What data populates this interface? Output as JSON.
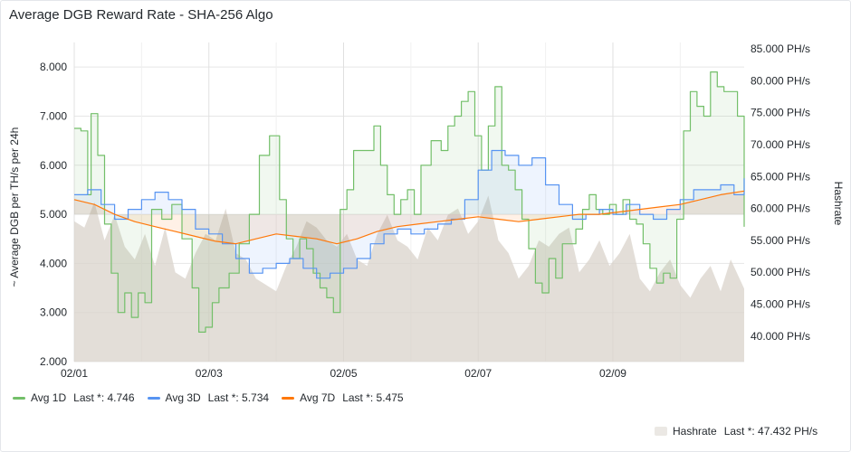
{
  "panel": {
    "title": "Average DGB Reward Rate - SHA-256 Algo"
  },
  "legend": {
    "items": [
      {
        "name": "Avg 1D",
        "stat": "Last *: 4.746",
        "color": "#73bf69"
      },
      {
        "name": "Avg 3D",
        "stat": "Last *: 5.734",
        "color": "#5794f2"
      },
      {
        "name": "Avg 7D",
        "stat": "Last *: 5.475",
        "color": "#ff780a"
      }
    ],
    "hashrate": {
      "name": "Hashrate",
      "stat": "Last *: 47.432 PH/s",
      "color": "#e9e6e1"
    }
  },
  "chart_data": {
    "type": "line",
    "title": "Average DGB Reward Rate - SHA-256 Algo",
    "x_ticks": [
      "02/01",
      "02/03",
      "02/05",
      "02/07",
      "02/09"
    ],
    "x_range_days": [
      0,
      9.95
    ],
    "y_left": {
      "label": "~ Average DGB per TH/s per 24h",
      "range": [
        2.0,
        8.5
      ],
      "ticks": [
        "2.000",
        "3.000",
        "4.000",
        "5.000",
        "6.000",
        "7.000",
        "8.000"
      ]
    },
    "y_right": {
      "label": "Hashrate",
      "range": [
        36000,
        86000
      ],
      "ticks": [
        "40.000 PH/s",
        "45.000 PH/s",
        "50.000 PH/s",
        "55.000 PH/s",
        "60.000 PH/s",
        "65.000 PH/s",
        "70.000 PH/s",
        "75.000 PH/s",
        "80.000 PH/s",
        "85.000 PH/s"
      ]
    },
    "grid": true,
    "series": [
      {
        "name": "Avg 1D",
        "axis": "left",
        "color": "#73bf69",
        "x": [
          0,
          0.1,
          0.2,
          0.25,
          0.35,
          0.45,
          0.55,
          0.65,
          0.75,
          0.85,
          0.95,
          1.05,
          1.15,
          1.3,
          1.45,
          1.6,
          1.75,
          1.85,
          1.95,
          2.05,
          2.15,
          2.3,
          2.45,
          2.6,
          2.75,
          2.9,
          3.05,
          3.15,
          3.25,
          3.35,
          3.45,
          3.55,
          3.65,
          3.75,
          3.85,
          3.95,
          4.05,
          4.15,
          4.3,
          4.45,
          4.55,
          4.65,
          4.75,
          4.85,
          4.95,
          5.05,
          5.15,
          5.3,
          5.45,
          5.55,
          5.65,
          5.75,
          5.85,
          5.95,
          6.05,
          6.15,
          6.25,
          6.35,
          6.45,
          6.55,
          6.65,
          6.75,
          6.85,
          6.95,
          7.05,
          7.15,
          7.25,
          7.35,
          7.45,
          7.55,
          7.65,
          7.75,
          7.85,
          7.95,
          8.05,
          8.15,
          8.25,
          8.35,
          8.45,
          8.55,
          8.65,
          8.75,
          8.85,
          8.95,
          9.05,
          9.15,
          9.25,
          9.35,
          9.45,
          9.55,
          9.65,
          9.75,
          9.85,
          9.95
        ],
        "values": [
          6.75,
          6.7,
          5.4,
          7.05,
          6.2,
          4.8,
          3.8,
          3.0,
          3.4,
          2.9,
          3.4,
          3.2,
          5.1,
          4.9,
          5.2,
          4.5,
          3.5,
          2.6,
          2.7,
          3.2,
          3.5,
          3.8,
          4.4,
          5.0,
          6.2,
          6.6,
          5.3,
          4.5,
          4.1,
          4.5,
          4.3,
          3.8,
          3.5,
          3.3,
          3.0,
          5.1,
          5.5,
          6.3,
          6.3,
          6.8,
          6.0,
          5.4,
          5.0,
          5.3,
          5.5,
          5.0,
          6.0,
          6.5,
          6.3,
          6.8,
          7.0,
          7.3,
          7.5,
          6.6,
          5.9,
          6.8,
          7.6,
          6.0,
          5.9,
          5.5,
          4.9,
          4.3,
          3.6,
          3.4,
          4.1,
          3.7,
          4.4,
          4.4,
          4.7,
          5.1,
          5.4,
          5.1,
          5.0,
          5.2,
          5.0,
          5.3,
          4.9,
          4.8,
          4.4,
          3.9,
          3.6,
          3.8,
          3.7,
          4.9,
          6.7,
          7.5,
          7.2,
          7.0,
          7.9,
          7.6,
          7.5,
          7.5,
          7.0,
          4.746
        ]
      },
      {
        "name": "Avg 3D",
        "axis": "left",
        "color": "#5794f2",
        "x": [
          0,
          0.2,
          0.4,
          0.6,
          0.8,
          1.0,
          1.2,
          1.4,
          1.6,
          1.8,
          2.0,
          2.2,
          2.4,
          2.6,
          2.8,
          3.0,
          3.2,
          3.4,
          3.6,
          3.8,
          4.0,
          4.2,
          4.4,
          4.6,
          4.8,
          5.0,
          5.2,
          5.4,
          5.6,
          5.8,
          6.0,
          6.2,
          6.4,
          6.6,
          6.8,
          7.0,
          7.2,
          7.4,
          7.6,
          7.8,
          8.0,
          8.2,
          8.4,
          8.6,
          8.8,
          9.0,
          9.2,
          9.4,
          9.6,
          9.8,
          9.95
        ],
        "values": [
          5.4,
          5.5,
          5.2,
          4.9,
          5.1,
          5.3,
          5.45,
          5.3,
          5.1,
          4.7,
          4.6,
          4.4,
          4.1,
          3.8,
          3.9,
          4.0,
          4.1,
          3.9,
          3.7,
          3.8,
          3.9,
          4.1,
          4.4,
          4.6,
          4.7,
          4.6,
          4.7,
          4.8,
          4.9,
          5.3,
          5.9,
          6.3,
          6.2,
          6.0,
          6.15,
          5.6,
          5.2,
          4.9,
          5.0,
          5.1,
          5.0,
          5.2,
          5.0,
          4.9,
          5.1,
          5.3,
          5.5,
          5.5,
          5.6,
          5.4,
          5.734
        ]
      },
      {
        "name": "Avg 7D",
        "axis": "left",
        "color": "#ff780a",
        "x": [
          0,
          0.3,
          0.6,
          0.9,
          1.2,
          1.5,
          1.8,
          2.1,
          2.4,
          2.7,
          3.0,
          3.3,
          3.6,
          3.9,
          4.2,
          4.5,
          4.8,
          5.1,
          5.4,
          5.7,
          6.0,
          6.3,
          6.6,
          6.9,
          7.2,
          7.5,
          7.8,
          8.1,
          8.4,
          8.7,
          9.0,
          9.3,
          9.6,
          9.95
        ],
        "values": [
          5.3,
          5.2,
          5.0,
          4.85,
          4.75,
          4.65,
          4.55,
          4.45,
          4.4,
          4.5,
          4.6,
          4.55,
          4.5,
          4.4,
          4.5,
          4.65,
          4.75,
          4.8,
          4.85,
          4.9,
          4.95,
          4.9,
          4.85,
          4.9,
          4.95,
          5.0,
          5.0,
          5.05,
          5.1,
          5.15,
          5.2,
          5.3,
          5.4,
          5.475
        ]
      },
      {
        "name": "Hashrate",
        "axis": "right",
        "color": "#d9d3cb",
        "x": [
          0,
          0.15,
          0.3,
          0.45,
          0.6,
          0.75,
          0.9,
          1.05,
          1.2,
          1.35,
          1.5,
          1.65,
          1.8,
          1.95,
          2.1,
          2.25,
          2.4,
          2.55,
          2.7,
          2.85,
          3.0,
          3.15,
          3.3,
          3.45,
          3.6,
          3.75,
          3.9,
          4.05,
          4.2,
          4.35,
          4.5,
          4.65,
          4.8,
          4.95,
          5.1,
          5.25,
          5.4,
          5.55,
          5.7,
          5.85,
          6.0,
          6.15,
          6.3,
          6.45,
          6.6,
          6.75,
          6.9,
          7.05,
          7.2,
          7.35,
          7.5,
          7.65,
          7.8,
          7.95,
          8.1,
          8.25,
          8.4,
          8.55,
          8.7,
          8.85,
          9.0,
          9.15,
          9.3,
          9.45,
          9.6,
          9.75,
          9.95
        ],
        "values": [
          58000,
          57000,
          61000,
          55000,
          59000,
          54000,
          52000,
          56000,
          51000,
          57000,
          50000,
          49000,
          53000,
          56000,
          55000,
          60000,
          53000,
          52000,
          49000,
          48000,
          47000,
          51000,
          54000,
          58000,
          57000,
          55000,
          54000,
          56000,
          52000,
          51000,
          56000,
          59000,
          55000,
          54000,
          52000,
          57000,
          55000,
          59000,
          60000,
          56000,
          58000,
          62000,
          55000,
          53000,
          49000,
          51000,
          55000,
          54000,
          56000,
          57000,
          50000,
          52000,
          55000,
          51000,
          53000,
          56000,
          49000,
          47000,
          50000,
          52000,
          48000,
          46000,
          49000,
          51000,
          47000,
          52000,
          47432
        ]
      }
    ]
  }
}
